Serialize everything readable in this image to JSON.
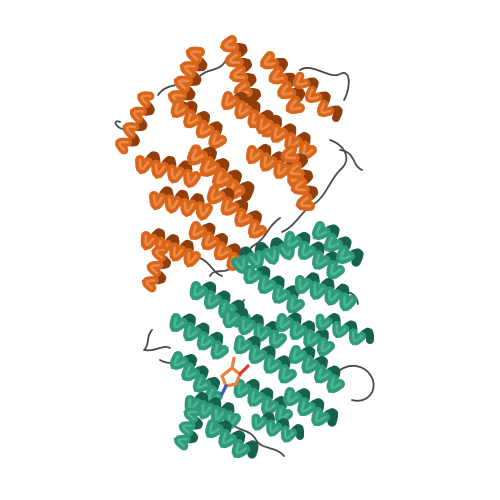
{
  "scene": {
    "background_color": "#ffffff",
    "subject": "protein-structure-cartoon",
    "chains": [
      {
        "name": "chain-A",
        "helix_color": "#d9651b",
        "helix_shadow": "#8f3e0c",
        "helix_highlight": "#f19a55"
      },
      {
        "name": "chain-B",
        "helix_color": "#2f9a7b",
        "helix_shadow": "#17624c",
        "helix_highlight": "#57c09d"
      }
    ],
    "loop_color": "#4a4a4a",
    "ligand_colors": {
      "carbon": "#e8823a",
      "oxygen": "#d63a2a",
      "nitrogen": "#3a55c8"
    }
  }
}
